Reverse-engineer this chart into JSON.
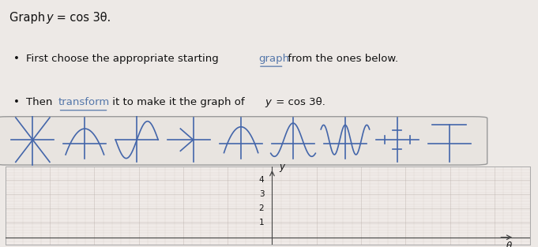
{
  "background_color": "#ede9e6",
  "graph_bg": "#f0ebe8",
  "grid_color_minor": "#c9bfbb",
  "grid_color_major": "#b8aeaa",
  "axis_color": "#444444",
  "text_color": "#111111",
  "link_color": "#5577aa",
  "symbol_color": "#4466aa",
  "box_bg": "#e8e4e0",
  "box_border": "#999999",
  "y_ticks": [
    1,
    2,
    3,
    4
  ],
  "y_label": "y",
  "x_label": "θ",
  "title_normal": "Graph ",
  "title_italic": "y",
  "title_rest": " = cos 3θ.",
  "b1_pre": "•  First choose the appropriate starting ",
  "b1_link": "graph",
  "b1_post": " from the ones below.",
  "b2_pre": "•  Then ",
  "b2_link": "transform",
  "b2_post": " it to make it the graph of ",
  "b2_italic": "y",
  "b2_end": " = cos 3θ."
}
